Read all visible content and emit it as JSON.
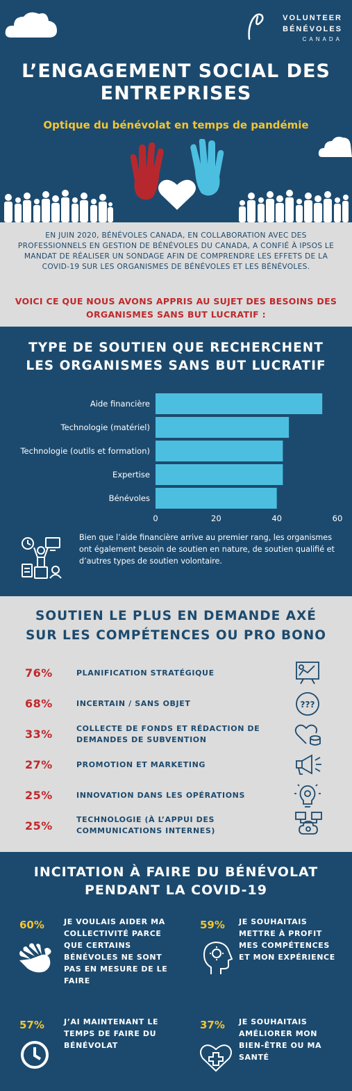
{
  "logo": {
    "line1": "VOLUNTEER",
    "line2": "BÉNÉVOLES",
    "line3": "CANADA"
  },
  "header": {
    "title_line1": "L’ENGAGEMENT SOCIAL DES",
    "title_line2": "ENTREPRISES",
    "subtitle": "Optique du bénévolat en temps de pandémie"
  },
  "intro": {
    "text": "EN JUIN 2020, BÉNÉVOLES CANADA, EN COLLABORATION AVEC DES PROFESSIONNELS EN GESTION DE BÉNÉVOLES DU CANADA, A CONFIÉ À IPSOS LE MANDAT DE RÉALISER UN SONDAGE AFIN DE COMPRENDRE LES EFFETS DE LA COVID-19 SUR LES ORGANISMES DE BÉNÉVOLES ET LES BÉNÉVOLES.",
    "highlight": "VOICI CE QUE NOUS AVONS APPRIS AU SUJET DES BESOINS DES ORGANISMES SANS BUT LUCRATIF :"
  },
  "support_section": {
    "title_line1": "TYPE DE SOUTIEN QUE RECHERCHENT",
    "title_line2": "LES ORGANISMES SANS BUT LUCRATIF",
    "note": "Bien que l’aide financière arrive au premier rang, les organismes ont également besoin de soutien en nature, de soutien qualifié et d’autres types de soutien volontaire."
  },
  "chart_data": {
    "type": "bar",
    "orientation": "horizontal",
    "categories": [
      "Aide financière",
      "Technologie (matériel)",
      "Technologie (outils et formation)",
      "Expertise",
      "Bénévoles"
    ],
    "values": [
      55,
      44,
      42,
      42,
      40
    ],
    "xlim": [
      0,
      60
    ],
    "xticks": [
      0,
      20,
      40,
      60
    ],
    "grid": false,
    "bar_color": "#4cbfe0"
  },
  "probono": {
    "title_line1": "SOUTIEN LE PLUS EN DEMANDE AXÉ",
    "title_line2": "SUR LES COMPÉTENCES OU PRO BONO",
    "items": [
      {
        "pct": "76%",
        "label": "PLANIFICATION STRATÉGIQUE",
        "icon": "strategy-board-icon"
      },
      {
        "pct": "68%",
        "label": "INCERTAIN / SANS OBJET",
        "icon": "question-marks-icon"
      },
      {
        "pct": "33%",
        "label": "COLLECTE DE FONDS ET RÉDACTION DE DEMANDES DE SUBVENTION",
        "icon": "heart-coins-icon"
      },
      {
        "pct": "27%",
        "label": "PROMOTION ET MARKETING",
        "icon": "megaphone-icon"
      },
      {
        "pct": "25%",
        "label": "INNOVATION DANS LES OPÉRATIONS",
        "icon": "lightbulb-gear-icon"
      },
      {
        "pct": "25%",
        "label": "TECHNOLOGIE (À L’APPUI DES COMMUNICATIONS INTERNES)",
        "icon": "network-devices-icon"
      }
    ]
  },
  "covid": {
    "title_line1": "INCITATION À FAIRE DU BÉNÉVOLAT",
    "title_line2": "PENDANT LA COVID-19",
    "items": [
      {
        "pct": "60%",
        "text": "JE VOULAIS AIDER MA COLLECTIVITÉ PARCE QUE CERTAINS BÉNÉVOLES NE SONT PAS EN MESURE DE LE FAIRE",
        "icon": "helping-hand-icon"
      },
      {
        "pct": "59%",
        "text": "JE SOUHAITAIS METTRE À PROFIT MES COMPÉTENCES ET MON EXPÉRIENCE",
        "icon": "head-gear-icon"
      },
      {
        "pct": "57%",
        "text": "J’AI MAINTENANT LE TEMPS DE FAIRE DU BÉNÉVOLAT",
        "icon": "clock-icon"
      },
      {
        "pct": "37%",
        "text": "JE SOUHAITAIS AMÉLIORER MON BIEN-ÊTRE OU MA SANTÉ",
        "icon": "health-heart-icon"
      }
    ]
  },
  "colors": {
    "navy": "#1c4a6e",
    "yellow": "#f4c531",
    "red": "#c0282c",
    "sky": "#4cbfe0",
    "grey": "#dcdcdc"
  }
}
